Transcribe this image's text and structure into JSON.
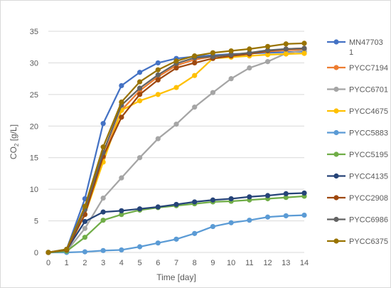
{
  "chart_data": {
    "type": "line",
    "title": "",
    "xlabel": "Time [day]",
    "ylabel_main": "CO",
    "ylabel_sub": "2",
    "ylabel_tail": " [g/L]",
    "xlim": [
      0,
      14
    ],
    "ylim": [
      0,
      35
    ],
    "x_ticks": [
      0,
      1,
      2,
      3,
      4,
      5,
      6,
      7,
      8,
      9,
      10,
      11,
      12,
      13,
      14
    ],
    "y_ticks": [
      0,
      5,
      10,
      15,
      20,
      25,
      30,
      35
    ],
    "grid": "horizontal",
    "legend_position": "right",
    "x": [
      0,
      1,
      2,
      3,
      4,
      5,
      6,
      7,
      8,
      9,
      10,
      11,
      12,
      13,
      14
    ],
    "series": [
      {
        "name_line1": "MN47703",
        "name_line2": "1",
        "color": "#4472C4",
        "values": [
          0,
          0.5,
          8.5,
          20.4,
          26.4,
          28.5,
          30.0,
          30.7,
          31.0,
          31.2,
          31.4,
          31.5,
          31.6,
          31.7,
          31.8
        ]
      },
      {
        "name_line1": "PYCC7194",
        "color": "#ED7D31",
        "values": [
          0,
          0.4,
          6.8,
          15.0,
          22.5,
          25.6,
          27.8,
          29.6,
          30.5,
          31.0,
          31.3,
          31.5,
          31.8,
          32.0,
          32.1
        ]
      },
      {
        "name_line1": "PYCC6701",
        "color": "#A5A5A5",
        "values": [
          0,
          0.2,
          3.8,
          8.6,
          11.8,
          15.0,
          18.0,
          20.3,
          23.0,
          25.3,
          27.5,
          29.2,
          30.2,
          31.5,
          32.0
        ]
      },
      {
        "name_line1": "PYCC4675",
        "color": "#FFC000",
        "values": [
          0,
          0.3,
          6.0,
          14.3,
          22.5,
          24.0,
          25.0,
          26.1,
          28.0,
          30.7,
          30.9,
          31.1,
          31.3,
          31.4,
          31.5
        ]
      },
      {
        "name_line1": "PYCC5883",
        "color": "#5B9BD5",
        "values": [
          0,
          0.0,
          0.1,
          0.3,
          0.4,
          0.9,
          1.5,
          2.1,
          3.0,
          4.1,
          4.7,
          5.1,
          5.6,
          5.8,
          5.9
        ]
      },
      {
        "name_line1": "PYCC5195",
        "color": "#70AD47",
        "values": [
          0,
          0.2,
          2.4,
          5.1,
          6.0,
          6.7,
          7.1,
          7.4,
          7.7,
          8.0,
          8.1,
          8.3,
          8.5,
          8.7,
          8.9
        ]
      },
      {
        "name_line1": "PYCC4135",
        "color": "#264478",
        "values": [
          0,
          0.4,
          4.9,
          6.4,
          6.6,
          6.9,
          7.2,
          7.6,
          8.0,
          8.3,
          8.5,
          8.8,
          9.0,
          9.3,
          9.4
        ]
      },
      {
        "name_line1": "PYCC2908",
        "color": "#9E480E",
        "values": [
          0,
          0.4,
          6.0,
          15.2,
          21.4,
          25.0,
          27.3,
          29.2,
          30.0,
          30.7,
          31.1,
          31.4,
          31.9,
          32.2,
          32.3
        ]
      },
      {
        "name_line1": "PYCC6986",
        "color": "#636363",
        "values": [
          0,
          0.5,
          6.8,
          15.8,
          23.3,
          26.0,
          28.1,
          29.9,
          30.8,
          31.0,
          31.3,
          31.6,
          32.0,
          32.2,
          32.3
        ]
      },
      {
        "name_line1": "PYCC6375",
        "color": "#997300",
        "values": [
          0,
          0.5,
          7.3,
          16.7,
          23.8,
          27.0,
          28.9,
          30.3,
          31.1,
          31.6,
          31.9,
          32.2,
          32.6,
          33.0,
          33.1
        ]
      }
    ]
  }
}
